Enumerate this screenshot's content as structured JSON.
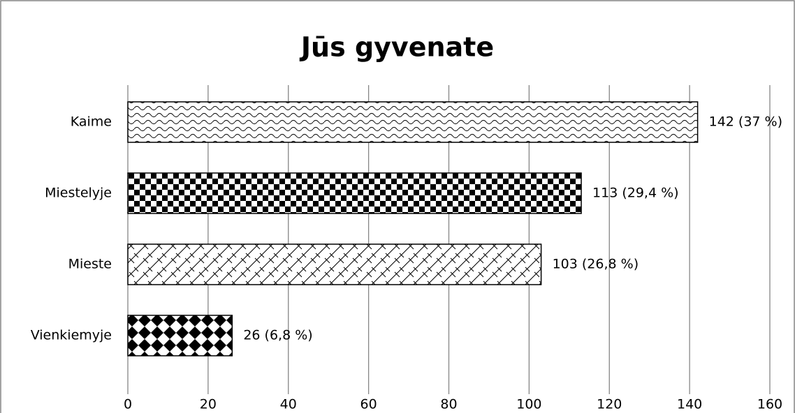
{
  "chart_data": {
    "type": "bar",
    "orientation": "horizontal",
    "title": "Jūs gyvenate",
    "categories": [
      "Kaime",
      "Miestelyje",
      "Mieste",
      "Vienkiemyje"
    ],
    "values": [
      142,
      113,
      103,
      26
    ],
    "value_labels": [
      "142 (37 %)",
      "113 (29,4 %)",
      "103 (26,8 %)",
      "26 (6,8 %)"
    ],
    "xlim": [
      0,
      160
    ],
    "xticks": [
      0,
      20,
      40,
      60,
      80,
      100,
      120,
      140,
      160
    ],
    "grid": true
  }
}
